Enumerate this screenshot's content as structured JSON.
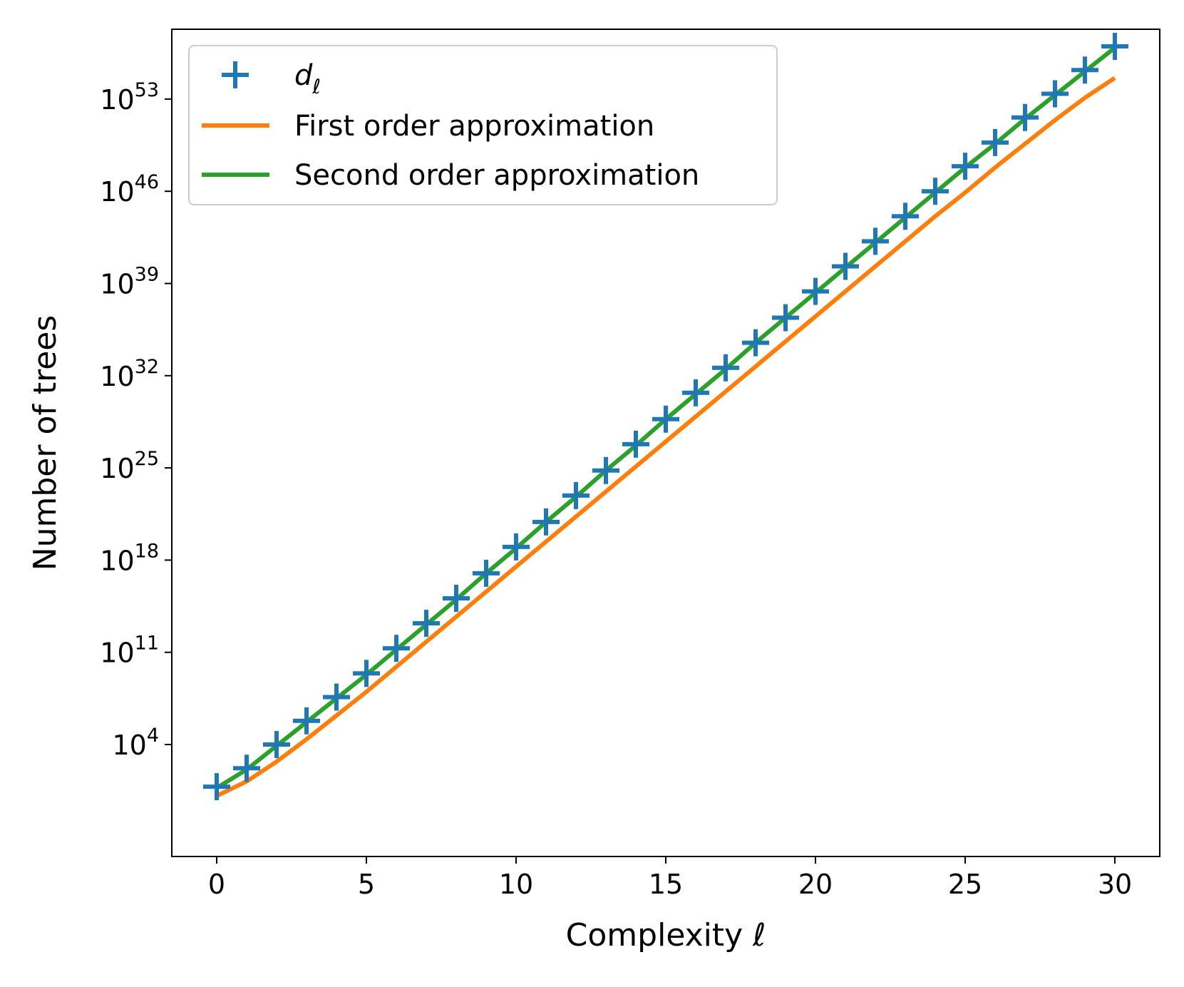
{
  "chart_data": {
    "type": "line",
    "title": "",
    "xlabel": "Complexity ℓ",
    "ylabel": "Number of trees",
    "xlim": [
      -1.5,
      31.5
    ],
    "yscale": "log",
    "ylim_log10": [
      -4.5,
      58.3
    ],
    "x_ticks": [
      0,
      5,
      10,
      15,
      20,
      25,
      30
    ],
    "y_ticks": [
      {
        "exp": 4,
        "label": "10",
        "sup": "4"
      },
      {
        "exp": 11,
        "label": "10",
        "sup": "11"
      },
      {
        "exp": 18,
        "label": "10",
        "sup": "18"
      },
      {
        "exp": 25,
        "label": "10",
        "sup": "25"
      },
      {
        "exp": 32,
        "label": "10",
        "sup": "32"
      },
      {
        "exp": 39,
        "label": "10",
        "sup": "39"
      },
      {
        "exp": 46,
        "label": "10",
        "sup": "46"
      },
      {
        "exp": 53,
        "label": "10",
        "sup": "53"
      }
    ],
    "grid": false,
    "legend_position": "upper-left",
    "series": [
      {
        "name": "d",
        "name_sub": "ℓ",
        "kind": "scatter",
        "marker": "plus",
        "color": "#1f77b4",
        "x": [
          0,
          1,
          2,
          3,
          4,
          5,
          6,
          7,
          8,
          9,
          10,
          11,
          12,
          13,
          14,
          15,
          16,
          17,
          18,
          19,
          20,
          21,
          22,
          23,
          24,
          25,
          26,
          27,
          28,
          29,
          30
        ],
        "log10_y": [
          0.8,
          2.2,
          4.0,
          5.8,
          7.6,
          9.4,
          11.3,
          13.2,
          15.1,
          17.0,
          19.0,
          20.9,
          22.9,
          24.8,
          26.8,
          28.7,
          30.7,
          32.6,
          34.5,
          36.4,
          38.4,
          40.3,
          42.2,
          44.1,
          46.0,
          47.9,
          49.7,
          51.6,
          53.4,
          55.2,
          57.0
        ]
      },
      {
        "name": "First order approximation",
        "kind": "line",
        "color": "#ff7f0e",
        "x": [
          0,
          1,
          2,
          3,
          4,
          5,
          6,
          7,
          8,
          9,
          10,
          11,
          12,
          13,
          14,
          15,
          16,
          17,
          18,
          19,
          20,
          21,
          22,
          23,
          24,
          25,
          26,
          27,
          28,
          29,
          30
        ],
        "log10_y": [
          0.1,
          1.2,
          2.7,
          4.4,
          6.2,
          8.0,
          9.9,
          11.8,
          13.7,
          15.6,
          17.5,
          19.4,
          21.3,
          23.2,
          25.1,
          27.0,
          28.9,
          30.8,
          32.7,
          34.6,
          36.5,
          38.4,
          40.3,
          42.2,
          44.1,
          45.9,
          47.8,
          49.6,
          51.4,
          53.1,
          54.6
        ]
      },
      {
        "name": "Second order approximation",
        "kind": "line",
        "color": "#2ca02c",
        "x": [
          0,
          1,
          2,
          3,
          4,
          5,
          6,
          7,
          8,
          9,
          10,
          11,
          12,
          13,
          14,
          15,
          16,
          17,
          18,
          19,
          20,
          21,
          22,
          23,
          24,
          25,
          26,
          27,
          28,
          29,
          30
        ],
        "log10_y": [
          0.7,
          2.1,
          3.9,
          5.7,
          7.5,
          9.3,
          11.2,
          13.1,
          15.0,
          17.0,
          18.9,
          20.9,
          22.8,
          24.8,
          26.7,
          28.7,
          30.6,
          32.5,
          34.5,
          36.4,
          38.3,
          40.2,
          42.1,
          44.0,
          45.9,
          47.8,
          49.6,
          51.5,
          53.3,
          55.1,
          56.9
        ]
      }
    ]
  }
}
